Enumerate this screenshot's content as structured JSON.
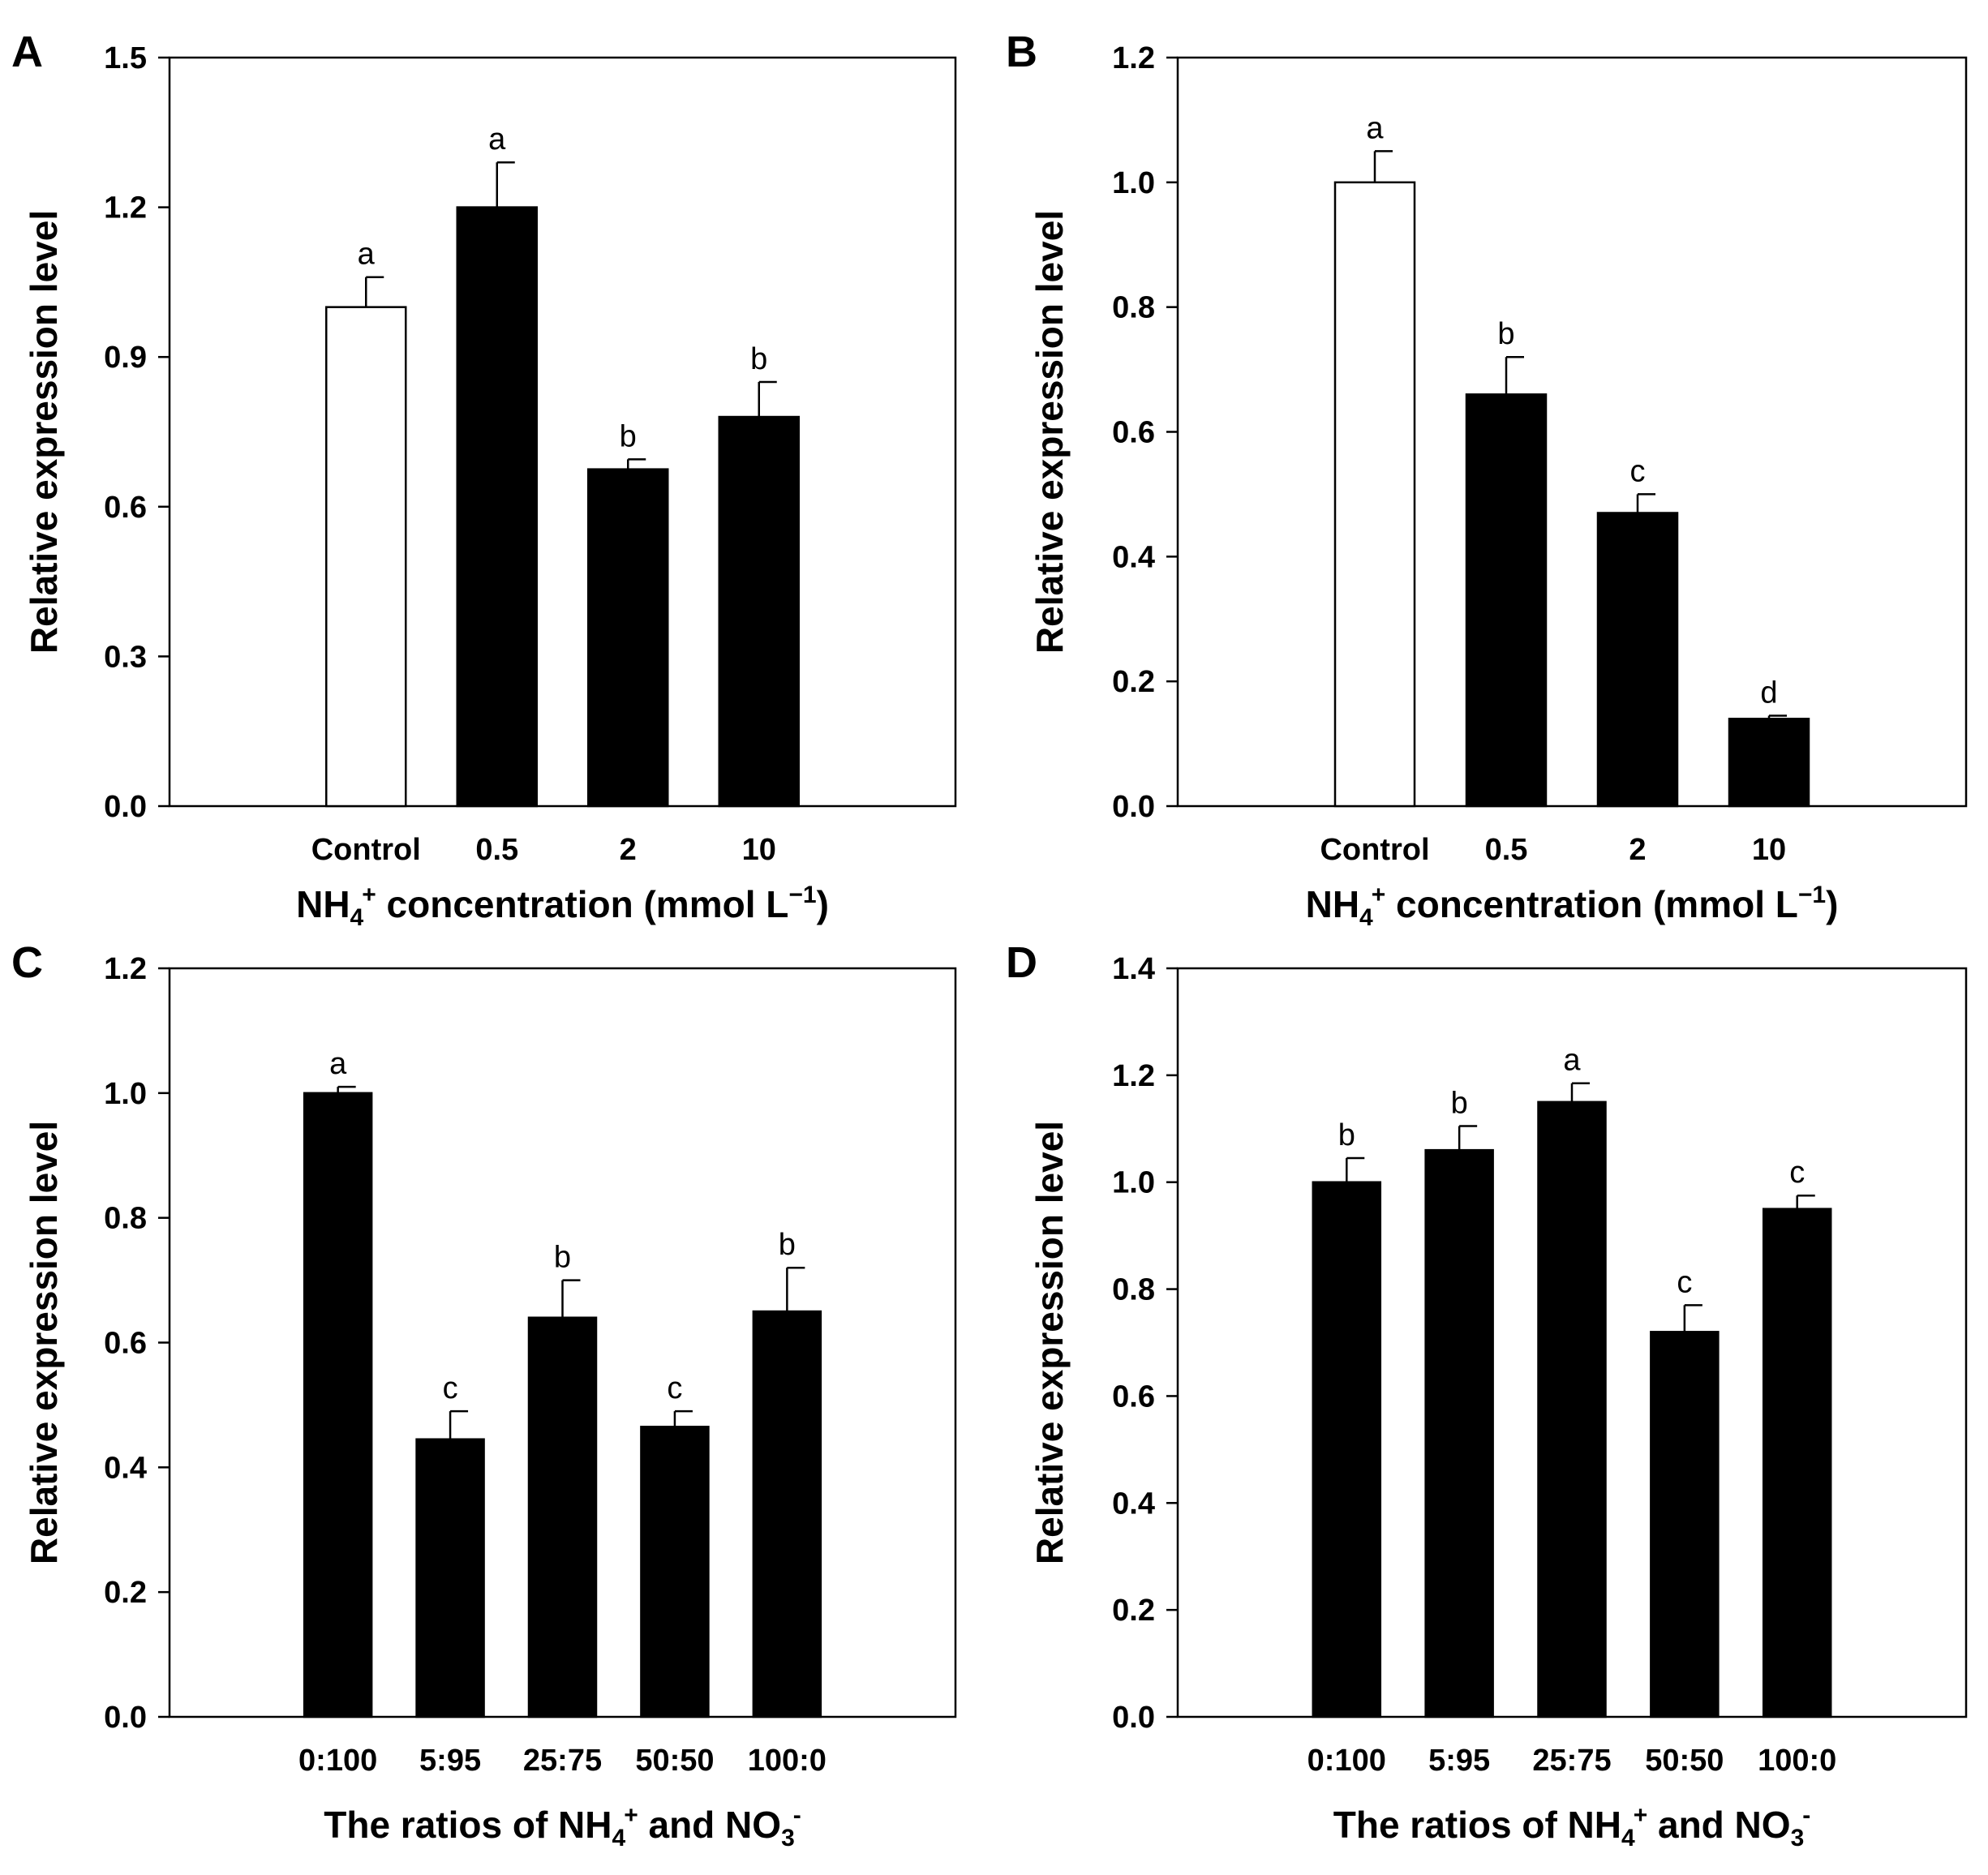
{
  "chart_data": [
    {
      "panel": "A",
      "type": "bar",
      "categories": [
        "Control",
        "0.5",
        "2",
        "10"
      ],
      "values": [
        1.0,
        1.2,
        0.675,
        0.78
      ],
      "errors": [
        0.06,
        0.09,
        0.02,
        0.07
      ],
      "significance": [
        "a",
        "a",
        "b",
        "b"
      ],
      "bar_fill": [
        "#ffffff",
        "#000000",
        "#000000",
        "#000000"
      ],
      "ylim": [
        0,
        1.5
      ],
      "yticks": [
        "0.0",
        "0.3",
        "0.6",
        "0.9",
        "1.2",
        "1.5"
      ],
      "ylabel": "Relative expression level",
      "xlabel": {
        "pre": "NH",
        "sub": "4",
        "sup": "+",
        "post": " concentration (mmol L",
        "sup2": "−1",
        "end": ")"
      }
    },
    {
      "panel": "B",
      "type": "bar",
      "categories": [
        "Control",
        "0.5",
        "2",
        "10"
      ],
      "values": [
        1.0,
        0.66,
        0.47,
        0.14
      ],
      "errors": [
        0.05,
        0.06,
        0.03,
        0.005
      ],
      "significance": [
        "a",
        "b",
        "c",
        "d"
      ],
      "bar_fill": [
        "#ffffff",
        "#000000",
        "#000000",
        "#000000"
      ],
      "ylim": [
        0,
        1.2
      ],
      "yticks": [
        "0.0",
        "0.2",
        "0.4",
        "0.6",
        "0.8",
        "1.0",
        "1.2"
      ],
      "ylabel": "Relative expression level",
      "xlabel": {
        "pre": "NH",
        "sub": "4",
        "sup": "+",
        "post": " concentration (mmol L",
        "sup2": "−1",
        "end": ")"
      }
    },
    {
      "panel": "C",
      "type": "bar",
      "categories": [
        "0:100",
        "5:95",
        "25:75",
        "50:50",
        "100:0"
      ],
      "values": [
        1.0,
        0.445,
        0.64,
        0.465,
        0.65
      ],
      "errors": [
        0.01,
        0.045,
        0.06,
        0.025,
        0.07
      ],
      "significance": [
        "a",
        "c",
        "b",
        "c",
        "b"
      ],
      "bar_fill": [
        "#000000",
        "#000000",
        "#000000",
        "#000000",
        "#000000"
      ],
      "ylim": [
        0,
        1.2
      ],
      "yticks": [
        "0.0",
        "0.2",
        "0.4",
        "0.6",
        "0.8",
        "1.0",
        "1.2"
      ],
      "ylabel": "Relative expression level",
      "xlabel": {
        "pre": "The ratios of NH",
        "sub": "4",
        "sup": "+",
        "post": " and NO",
        "sub2": "3",
        "sup2": "-"
      }
    },
    {
      "panel": "D",
      "type": "bar",
      "categories": [
        "0:100",
        "5:95",
        "25:75",
        "50:50",
        "100:0"
      ],
      "values": [
        1.0,
        1.06,
        1.15,
        0.72,
        0.95
      ],
      "errors": [
        0.045,
        0.045,
        0.035,
        0.05,
        0.025
      ],
      "significance": [
        "b",
        "b",
        "a",
        "c",
        "c"
      ],
      "bar_fill": [
        "#000000",
        "#000000",
        "#000000",
        "#000000",
        "#000000"
      ],
      "ylim": [
        0,
        1.4
      ],
      "yticks": [
        "0.0",
        "0.2",
        "0.4",
        "0.6",
        "0.8",
        "1.0",
        "1.2",
        "1.4"
      ],
      "ylabel": "Relative expression level",
      "xlabel": {
        "pre": "The ratios of NH",
        "sub": "4",
        "sup": "+",
        "post": " and NO",
        "sub2": "3",
        "sup2": "-"
      }
    }
  ]
}
